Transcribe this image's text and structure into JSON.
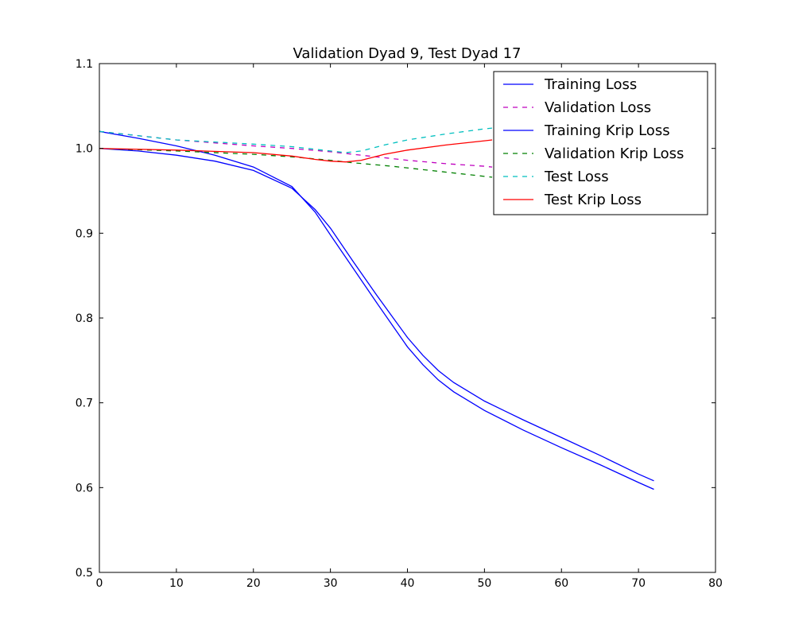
{
  "chart_data": {
    "type": "line",
    "title": "Validation Dyad 9, Test Dyad 17",
    "xlabel": "",
    "ylabel": "",
    "xlim": [
      0,
      80
    ],
    "ylim": [
      0.5,
      1.1
    ],
    "xticks": [
      0,
      10,
      20,
      30,
      40,
      50,
      60,
      70,
      80
    ],
    "yticks": [
      0.5,
      0.6,
      0.7,
      0.8,
      0.9,
      1.0,
      1.1
    ],
    "x_tick_labels": [
      "0",
      "10",
      "20",
      "30",
      "40",
      "50",
      "60",
      "70",
      "80"
    ],
    "y_tick_labels": [
      "0.5",
      "0.6",
      "0.7",
      "0.8",
      "0.9",
      "1.0",
      "1.1"
    ],
    "grid": false,
    "legend_position": "top-right",
    "series": [
      {
        "name": "Training Loss",
        "color": "#0000ff",
        "dash": "solid",
        "points": [
          [
            0,
            1.02
          ],
          [
            5,
            1.012
          ],
          [
            10,
            1.003
          ],
          [
            15,
            0.992
          ],
          [
            20,
            0.978
          ],
          [
            25,
            0.955
          ],
          [
            28,
            0.925
          ],
          [
            30,
            0.898
          ],
          [
            33,
            0.858
          ],
          [
            36,
            0.818
          ],
          [
            38,
            0.792
          ],
          [
            40,
            0.766
          ],
          [
            42,
            0.745
          ],
          [
            44,
            0.727
          ],
          [
            46,
            0.713
          ],
          [
            50,
            0.691
          ],
          [
            55,
            0.668
          ],
          [
            60,
            0.647
          ],
          [
            65,
            0.627
          ],
          [
            70,
            0.606
          ],
          [
            72,
            0.598
          ]
        ]
      },
      {
        "name": "Validation Loss",
        "color": "#bf00bf",
        "dash": "dashed",
        "points": [
          [
            0,
            1.02
          ],
          [
            10,
            1.01
          ],
          [
            20,
            1.003
          ],
          [
            25,
            1.0
          ],
          [
            30,
            0.996
          ],
          [
            35,
            0.991
          ],
          [
            40,
            0.986
          ],
          [
            45,
            0.982
          ],
          [
            50,
            0.979
          ],
          [
            51,
            0.978
          ]
        ]
      },
      {
        "name": "Training Krip Loss",
        "color": "#0000ff",
        "dash": "solid",
        "points": [
          [
            0,
            1.0
          ],
          [
            5,
            0.997
          ],
          [
            10,
            0.992
          ],
          [
            15,
            0.985
          ],
          [
            20,
            0.974
          ],
          [
            25,
            0.953
          ],
          [
            28,
            0.928
          ],
          [
            30,
            0.906
          ],
          [
            33,
            0.866
          ],
          [
            36,
            0.827
          ],
          [
            38,
            0.802
          ],
          [
            40,
            0.777
          ],
          [
            42,
            0.756
          ],
          [
            44,
            0.738
          ],
          [
            46,
            0.724
          ],
          [
            50,
            0.702
          ],
          [
            55,
            0.68
          ],
          [
            60,
            0.659
          ],
          [
            65,
            0.638
          ],
          [
            70,
            0.616
          ],
          [
            72,
            0.608
          ]
        ]
      },
      {
        "name": "Validation Krip Loss",
        "color": "#008000",
        "dash": "dashed",
        "points": [
          [
            0,
            1.0
          ],
          [
            10,
            0.997
          ],
          [
            20,
            0.993
          ],
          [
            25,
            0.99
          ],
          [
            30,
            0.986
          ],
          [
            33,
            0.983
          ],
          [
            38,
            0.979
          ],
          [
            43,
            0.974
          ],
          [
            48,
            0.969
          ],
          [
            51,
            0.966
          ]
        ]
      },
      {
        "name": "Test Loss",
        "color": "#00bfbf",
        "dash": "dashed",
        "points": [
          [
            0,
            1.02
          ],
          [
            10,
            1.01
          ],
          [
            20,
            1.005
          ],
          [
            25,
            1.002
          ],
          [
            30,
            0.997
          ],
          [
            32,
            0.995
          ],
          [
            34,
            0.997
          ],
          [
            37,
            1.004
          ],
          [
            40,
            1.01
          ],
          [
            45,
            1.017
          ],
          [
            50,
            1.023
          ],
          [
            51,
            1.024
          ]
        ]
      },
      {
        "name": "Test Krip Loss",
        "color": "#ff0000",
        "dash": "solid",
        "points": [
          [
            0,
            1.0
          ],
          [
            10,
            0.998
          ],
          [
            20,
            0.995
          ],
          [
            25,
            0.991
          ],
          [
            28,
            0.987
          ],
          [
            30,
            0.985
          ],
          [
            32,
            0.984
          ],
          [
            34,
            0.986
          ],
          [
            37,
            0.993
          ],
          [
            40,
            0.998
          ],
          [
            45,
            1.004
          ],
          [
            50,
            1.009
          ],
          [
            51,
            1.01
          ]
        ]
      }
    ]
  }
}
